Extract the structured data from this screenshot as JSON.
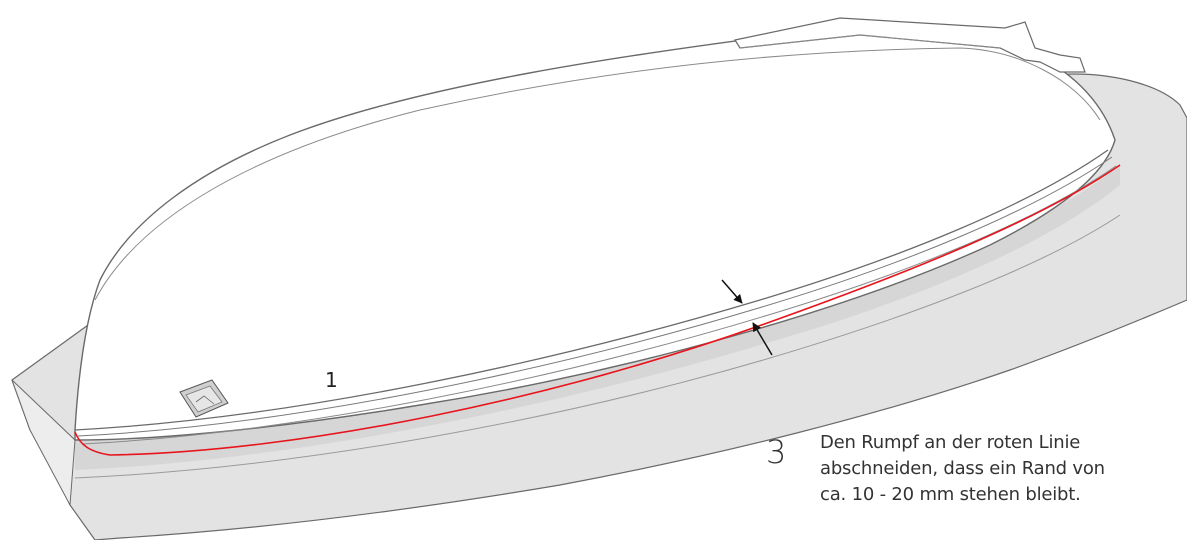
{
  "labels": {
    "part_number": "1",
    "step_number": "3"
  },
  "instruction": {
    "lines": [
      "Den Rumpf an der roten Linie",
      "abschneiden, dass ein Rand von",
      "ca. 10 - 20 mm stehen bleibt."
    ]
  },
  "colors": {
    "cut_line": "#e8141c",
    "flange_fill": "#e3e3e3",
    "hull_fill": "#ffffff",
    "outline": "#555555",
    "arrow": "#111111"
  }
}
